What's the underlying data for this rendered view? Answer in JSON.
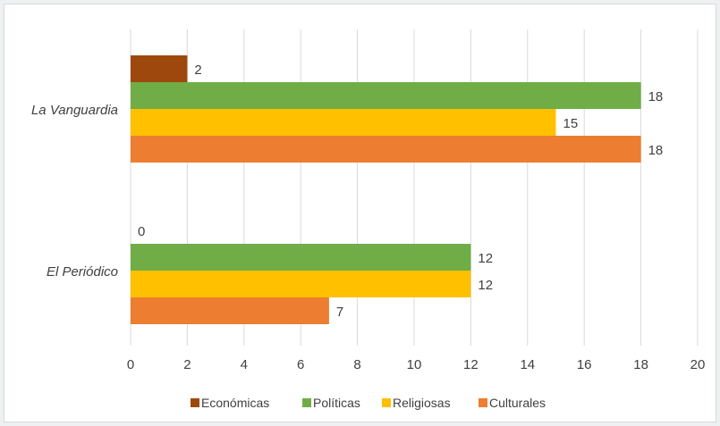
{
  "chart_data": {
    "type": "bar",
    "orientation": "horizontal",
    "categories": [
      "La Vanguardia",
      "El Periódico"
    ],
    "series": [
      {
        "name": "Económicas",
        "color": "#9e480e",
        "values": [
          2,
          0
        ]
      },
      {
        "name": "Políticas",
        "color": "#70ad47",
        "values": [
          18,
          12
        ]
      },
      {
        "name": "Religiosas",
        "color": "#ffc000",
        "values": [
          15,
          12
        ]
      },
      {
        "name": "Culturales",
        "color": "#ed7d31",
        "values": [
          18,
          7
        ]
      }
    ],
    "xlim": [
      0,
      20
    ],
    "xticks": [
      "0",
      "2",
      "4",
      "6",
      "8",
      "10",
      "12",
      "14",
      "16",
      "18",
      "20"
    ],
    "grid": true,
    "legend": "bottom",
    "data_labels": true
  }
}
